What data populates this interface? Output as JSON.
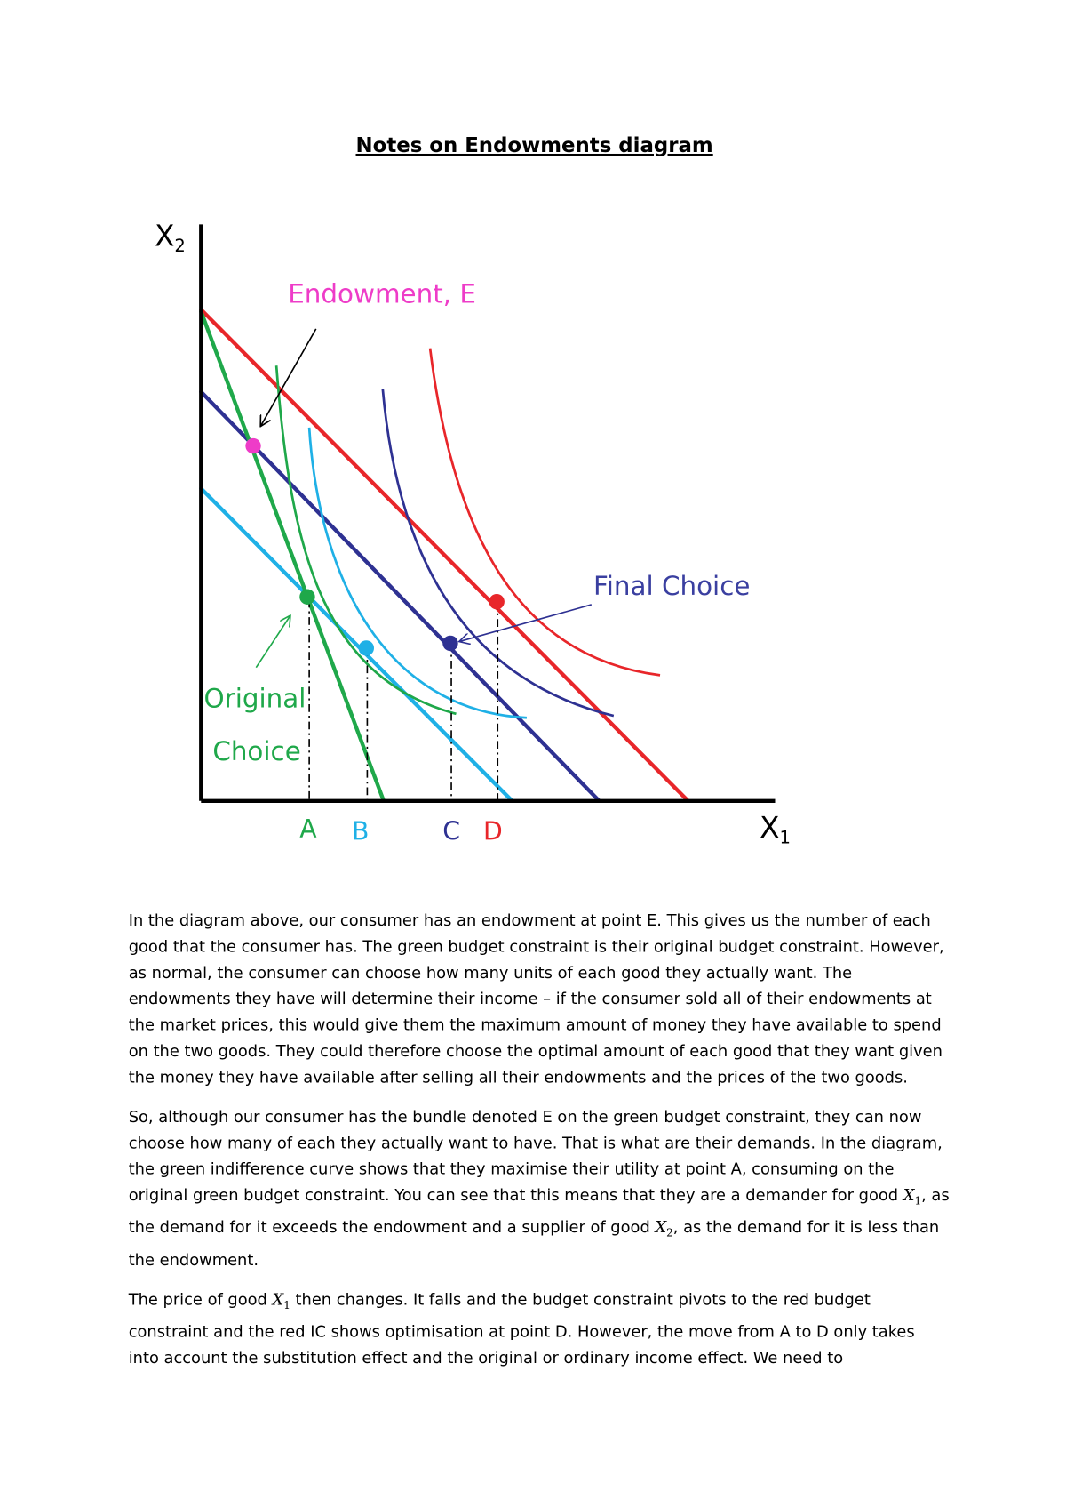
{
  "title": "Notes on Endowments diagram",
  "diagram": {
    "y_axis": {
      "var": "X",
      "sub": "2"
    },
    "x_axis": {
      "var": "X",
      "sub": "1"
    },
    "endowment_label": "Endowment, E",
    "final_label": "Final Choice",
    "original_label": [
      "Original",
      "Choice"
    ],
    "points": [
      "A",
      "B",
      "C",
      "D"
    ]
  },
  "paragraphs": [
    [
      "In the diagram above, our consumer has an endowment at point E. This gives us the number of each good that the consumer has. The green budget constraint is their original budget constraint. However, as normal, the consumer can choose how many units of each good they actually want. The endowments they have will determine their income – if the consumer sold all of their endowments at the market prices, this would give them the maximum amount of money they have available to spend on the two goods. They could therefore choose the optimal amount of each good that they want given the money they have available after selling all their endowments and the prices of the two goods."
    ],
    [
      "So, although our consumer has the bundle denoted E on the green budget constraint, they can now choose how many of each they actually want to have. That is what are their demands. In the diagram, the green indifference curve shows that they maximise their utility at point A, consuming on the original green budget constraint. You can see that this means that they are a demander for good ",
      {
        "var": "X",
        "sub": "1"
      },
      ", as the demand for it exceeds the endowment and a supplier of good ",
      {
        "var": "X",
        "sub": "2"
      },
      ", as the demand for it is less than the endowment."
    ],
    [
      "The price of good ",
      {
        "var": "X",
        "sub": "1"
      },
      " then changes. It falls and the budget constraint pivots to the red budget constraint and the red IC shows optimisation at point D. However, the move from A to D only takes into account the substitution effect and the original or ordinary income effect. We need to"
    ]
  ]
}
